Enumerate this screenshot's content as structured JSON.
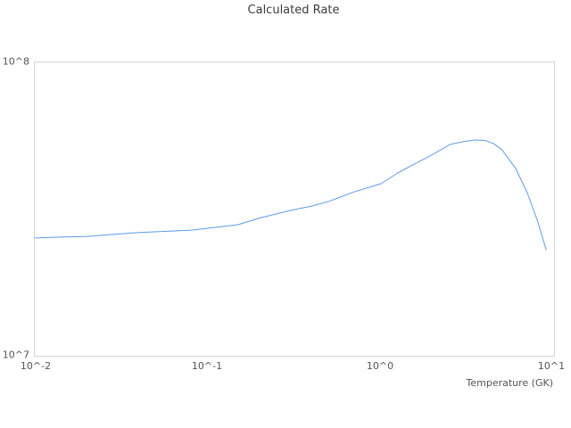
{
  "header": {
    "title": "Calculated Rate"
  },
  "axes": {
    "x_label": "Temperature (GK)",
    "x_tick_labels": [
      "10^-2",
      "10^-1",
      "10^0",
      "10^1"
    ],
    "y_tick_labels": [
      "10^8",
      "10^7"
    ]
  },
  "colors": {
    "line": "#5f9ae8",
    "frame": "#d5d5d5",
    "title_text": "#3b3b3b",
    "tick_text": "#545454",
    "background": "#ffffff"
  },
  "chart_data": {
    "type": "line",
    "title": "Calculated Rate",
    "xlabel": "Temperature (GK)",
    "ylabel": "",
    "x_scale": "log",
    "y_scale": "log",
    "xlim_log": [
      -2,
      1
    ],
    "ylim_log": [
      7,
      8
    ],
    "x_tick_labels": [
      "10^-2",
      "10^-1",
      "10^0",
      "10^1"
    ],
    "y_tick_labels": [
      "10^7",
      "10^8"
    ],
    "grid": false,
    "legend": "none",
    "line_color": "#5f9ae8",
    "series_name": "calculated-rate",
    "x": [
      0.01,
      0.015,
      0.02,
      0.03,
      0.04,
      0.06,
      0.08,
      0.1,
      0.15,
      0.2,
      0.3,
      0.4,
      0.5,
      0.7,
      1.0,
      1.25,
      1.5,
      2.0,
      2.5,
      3.0,
      3.5,
      4.0,
      4.5,
      5.0,
      6.0,
      7.0,
      8.0,
      9.0
    ],
    "values": [
      25200000,
      25400000,
      25500000,
      26000000,
      26300000,
      26600000,
      26800000,
      27200000,
      28000000,
      29500000,
      31300000,
      32400000,
      33600000,
      36200000,
      38600000,
      42000000,
      44500000,
      48600000,
      52500000,
      53700000,
      54400000,
      54200000,
      52800000,
      50400000,
      43500000,
      36000000,
      29000000,
      23000000
    ]
  }
}
